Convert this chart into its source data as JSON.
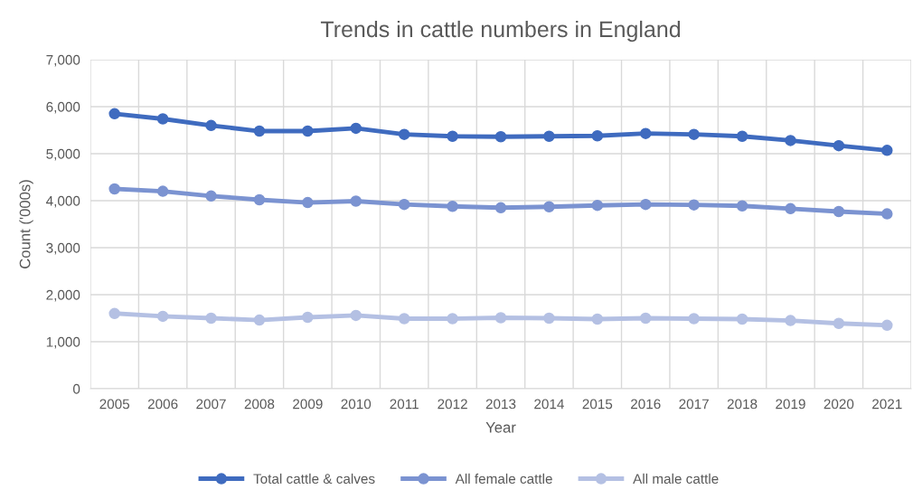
{
  "chart_data": {
    "type": "line",
    "title": "Trends in cattle numbers in England",
    "xlabel": "Year",
    "ylabel": "Count ('000s)",
    "categories": [
      "2005",
      "2006",
      "2007",
      "2008",
      "2009",
      "2010",
      "2011",
      "2012",
      "2013",
      "2014",
      "2015",
      "2016",
      "2017",
      "2018",
      "2019",
      "2020",
      "2021"
    ],
    "series": [
      {
        "name": "Total cattle & calves",
        "color": "#3f6bbf",
        "values": [
          5850,
          5740,
          5600,
          5480,
          5480,
          5540,
          5410,
          5370,
          5360,
          5370,
          5380,
          5430,
          5410,
          5370,
          5280,
          5170,
          5070
        ]
      },
      {
        "name": "All female cattle",
        "color": "#7b93d1",
        "values": [
          4250,
          4200,
          4100,
          4020,
          3960,
          3990,
          3920,
          3880,
          3850,
          3870,
          3900,
          3920,
          3910,
          3890,
          3830,
          3770,
          3720
        ]
      },
      {
        "name": "All male cattle",
        "color": "#b4c0e3",
        "values": [
          1600,
          1540,
          1500,
          1460,
          1520,
          1560,
          1490,
          1490,
          1510,
          1500,
          1480,
          1500,
          1490,
          1480,
          1450,
          1390,
          1350
        ]
      }
    ],
    "ylim": [
      0,
      7000
    ],
    "yticks": [
      {
        "value": 0,
        "label": "0"
      },
      {
        "value": 1000,
        "label": "1,000"
      },
      {
        "value": 2000,
        "label": "2,000"
      },
      {
        "value": 3000,
        "label": "3,000"
      },
      {
        "value": 4000,
        "label": "4,000"
      },
      {
        "value": 5000,
        "label": "5,000"
      },
      {
        "value": 6000,
        "label": "6,000"
      },
      {
        "value": 7000,
        "label": "7,000"
      }
    ],
    "grid": true,
    "legend": "bottom",
    "marker": "circle",
    "line_style": "solid"
  }
}
